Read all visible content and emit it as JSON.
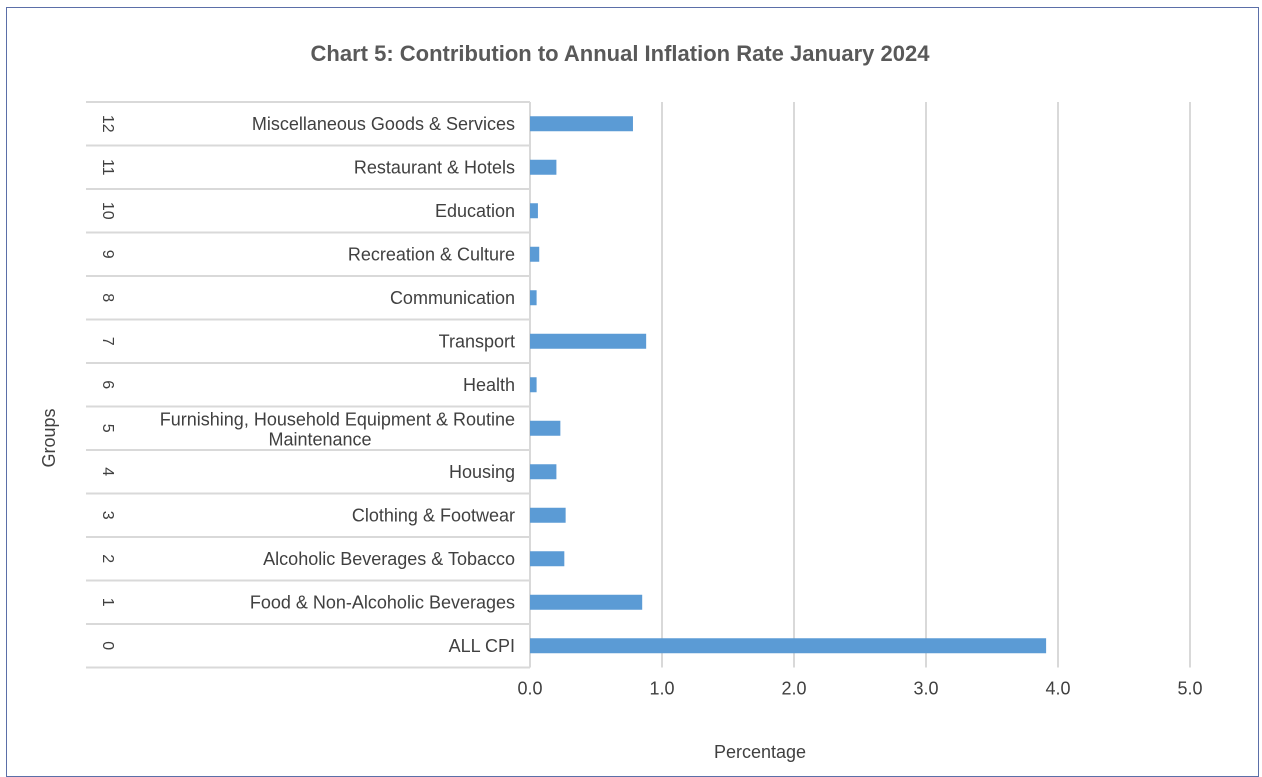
{
  "chart_data": {
    "type": "bar",
    "orientation": "horizontal",
    "title": "Chart 5: Contribution to Annual Inflation Rate January 2024",
    "xlabel": "Percentage",
    "ylabel": "Groups",
    "xlim": [
      0,
      5
    ],
    "xticks": [
      "0.0",
      "1.0",
      "2.0",
      "3.0",
      "4.0",
      "5.0"
    ],
    "grid": true,
    "bar_color": "#5b9bd5",
    "categories": [
      {
        "code": "12",
        "label": "Miscellaneous Goods &  Services",
        "value": 0.78
      },
      {
        "code": "11",
        "label": "Restaurant & Hotels",
        "value": 0.2
      },
      {
        "code": "10",
        "label": "Education",
        "value": 0.06
      },
      {
        "code": "9",
        "label": "Recreation & Culture",
        "value": 0.07
      },
      {
        "code": "8",
        "label": "Communication",
        "value": 0.05
      },
      {
        "code": "7",
        "label": "Transport",
        "value": 0.88
      },
      {
        "code": "6",
        "label": "Health",
        "value": 0.05
      },
      {
        "code": "5",
        "label": [
          "Furnishing, Household Equipment & Routine",
          "Maintenance"
        ],
        "value": 0.23
      },
      {
        "code": "4",
        "label": "Housing",
        "value": 0.2
      },
      {
        "code": "3",
        "label": "Clothing & Footwear",
        "value": 0.27
      },
      {
        "code": "2",
        "label": "Alcoholic Beverages & Tobacco",
        "value": 0.26
      },
      {
        "code": "1",
        "label": "Food & Non-Alcoholic Beverages",
        "value": 0.85
      },
      {
        "code": "0",
        "label": "ALL CPI",
        "value": 3.91
      }
    ]
  }
}
